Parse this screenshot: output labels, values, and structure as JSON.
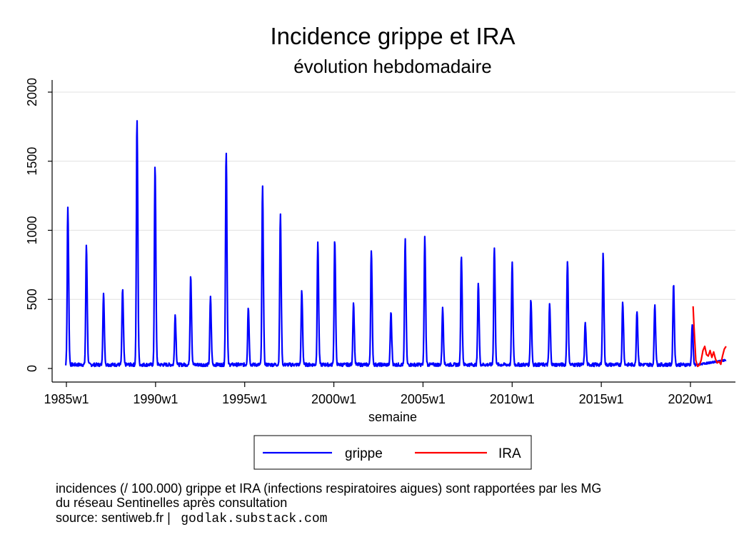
{
  "chart_data": {
    "type": "line",
    "title": "Incidence grippe et IRA",
    "subtitle": "évolution hebdomadaire",
    "xlabel": "semaine",
    "ylabel": "",
    "xlim": [
      1985.0,
      2022.3
    ],
    "ylim": [
      0,
      2000
    ],
    "grid": true,
    "legend_position": "bottom",
    "x_tick_labels": [
      "1985w1",
      "1990w1",
      "1995w1",
      "2000w1",
      "2005w1",
      "2010w1",
      "2015w1",
      "2020w1"
    ],
    "x_ticks": [
      1985,
      1990,
      1995,
      2000,
      2005,
      2010,
      2015,
      2020
    ],
    "y_ticks": [
      0,
      500,
      1000,
      1500,
      2000
    ],
    "y_tick_labels": [
      "0",
      "500",
      "1000",
      "1500",
      "2000"
    ],
    "series": [
      {
        "name": "grippe",
        "color": "#0000ff",
        "seasonal_peaks": [
          {
            "x": 1985.08,
            "y": 1150
          },
          {
            "x": 1986.12,
            "y": 880
          },
          {
            "x": 1987.08,
            "y": 530
          },
          {
            "x": 1988.15,
            "y": 565
          },
          {
            "x": 1988.96,
            "y": 1790
          },
          {
            "x": 1989.97,
            "y": 1460
          },
          {
            "x": 1991.1,
            "y": 375
          },
          {
            "x": 1991.97,
            "y": 665
          },
          {
            "x": 1993.08,
            "y": 500
          },
          {
            "x": 1993.96,
            "y": 1565
          },
          {
            "x": 1995.2,
            "y": 430
          },
          {
            "x": 1996.0,
            "y": 1300
          },
          {
            "x": 1997.0,
            "y": 1105
          },
          {
            "x": 1998.2,
            "y": 545
          },
          {
            "x": 1999.1,
            "y": 890
          },
          {
            "x": 2000.05,
            "y": 920
          },
          {
            "x": 2001.1,
            "y": 465
          },
          {
            "x": 2002.1,
            "y": 850
          },
          {
            "x": 2003.2,
            "y": 395
          },
          {
            "x": 2004.0,
            "y": 925
          },
          {
            "x": 2005.1,
            "y": 935
          },
          {
            "x": 2006.1,
            "y": 420
          },
          {
            "x": 2007.15,
            "y": 815
          },
          {
            "x": 2008.1,
            "y": 615
          },
          {
            "x": 2009.0,
            "y": 865
          },
          {
            "x": 2010.0,
            "y": 755
          },
          {
            "x": 2011.05,
            "y": 490
          },
          {
            "x": 2012.1,
            "y": 450
          },
          {
            "x": 2013.1,
            "y": 770
          },
          {
            "x": 2014.1,
            "y": 325
          },
          {
            "x": 2015.1,
            "y": 825
          },
          {
            "x": 2016.2,
            "y": 465
          },
          {
            "x": 2017.0,
            "y": 410
          },
          {
            "x": 2018.0,
            "y": 455
          },
          {
            "x": 2019.05,
            "y": 600
          },
          {
            "x": 2020.1,
            "y": 310
          }
        ],
        "baseline": 15,
        "last_point": {
          "x": 2022.0,
          "y": 60
        }
      },
      {
        "name": "IRA",
        "color": "#ff0000",
        "points": [
          {
            "x": 2020.15,
            "y": 450
          },
          {
            "x": 2020.2,
            "y": 300
          },
          {
            "x": 2020.3,
            "y": 60
          },
          {
            "x": 2020.4,
            "y": 15
          },
          {
            "x": 2020.5,
            "y": 25
          },
          {
            "x": 2020.6,
            "y": 60
          },
          {
            "x": 2020.7,
            "y": 130
          },
          {
            "x": 2020.8,
            "y": 160
          },
          {
            "x": 2020.9,
            "y": 100
          },
          {
            "x": 2021.0,
            "y": 90
          },
          {
            "x": 2021.1,
            "y": 130
          },
          {
            "x": 2021.2,
            "y": 80
          },
          {
            "x": 2021.3,
            "y": 120
          },
          {
            "x": 2021.4,
            "y": 70
          },
          {
            "x": 2021.5,
            "y": 40
          },
          {
            "x": 2021.6,
            "y": 50
          },
          {
            "x": 2021.7,
            "y": 30
          },
          {
            "x": 2021.8,
            "y": 90
          },
          {
            "x": 2021.9,
            "y": 140
          },
          {
            "x": 2022.0,
            "y": 160
          }
        ]
      }
    ]
  },
  "notes": {
    "line1": "incidences (/ 100.000) grippe et IRA (infections respiratoires aigues) sont rapportées par les MG",
    "line2": "du réseau Sentinelles après consultation",
    "line3_prefix": "source: sentiweb.fr |",
    "line3_mono": "godlak.substack.com"
  }
}
